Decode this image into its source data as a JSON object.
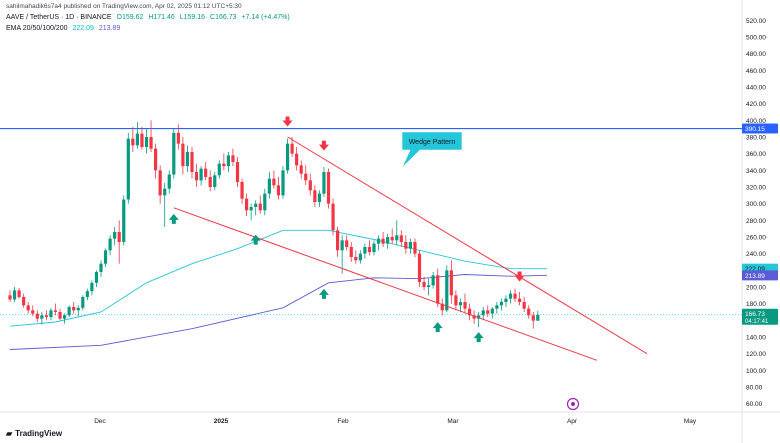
{
  "header": {
    "published": "sahilmahadik6s7a4 published on TradingView.com, Apr 02, 2025 01:12 UTC+5:30",
    "symbol": "AAVE / TetherUS · 1D · BINANCE",
    "ohlc": {
      "open": "O159.62",
      "high": "H171.46",
      "low": "L159.16",
      "close": "C166.73",
      "change": "+7.14 (+4.47%)"
    },
    "ema_label": "EMA 20/50/100/200",
    "ema_values": [
      "222.09",
      "213.89"
    ]
  },
  "branding": {
    "logo_text": "TradingView"
  },
  "colors": {
    "up": "#089981",
    "down": "#f23645",
    "resistance": "#2962ff",
    "wedge": "#f23645",
    "ema_fast": "#26c6da",
    "ema_slow": "#5b5bd6",
    "arrow_up": "#089981",
    "arrow_down": "#f23645"
  },
  "chart_data": {
    "type": "candlestick",
    "y_ticks": [
      60,
      80,
      100,
      120,
      140,
      160,
      180,
      200,
      220,
      240,
      260,
      280,
      300,
      320,
      340,
      360,
      380,
      400,
      420,
      440,
      460,
      480,
      500,
      520
    ],
    "ylim": [
      50,
      530
    ],
    "x_ticks": [
      "Dec",
      "2025",
      "Feb",
      "Mar",
      "Apr",
      "May"
    ],
    "price_labels": {
      "resistance": "390.15",
      "ema_fast": "222.09",
      "ema_slow": "213.89",
      "last": "166.73",
      "countdown": "04:17:41"
    },
    "resistance_level": 390.15,
    "annotation": "Wedge Pattern",
    "candles": [
      {
        "o": 190,
        "h": 196,
        "l": 182,
        "c": 185
      },
      {
        "o": 185,
        "h": 200,
        "l": 182,
        "c": 196
      },
      {
        "o": 196,
        "h": 199,
        "l": 186,
        "c": 188
      },
      {
        "o": 188,
        "h": 192,
        "l": 175,
        "c": 178
      },
      {
        "o": 178,
        "h": 182,
        "l": 168,
        "c": 172
      },
      {
        "o": 172,
        "h": 178,
        "l": 165,
        "c": 168
      },
      {
        "o": 168,
        "h": 172,
        "l": 158,
        "c": 162
      },
      {
        "o": 162,
        "h": 170,
        "l": 155,
        "c": 166
      },
      {
        "o": 166,
        "h": 172,
        "l": 160,
        "c": 164
      },
      {
        "o": 164,
        "h": 175,
        "l": 160,
        "c": 172
      },
      {
        "o": 172,
        "h": 180,
        "l": 166,
        "c": 170
      },
      {
        "o": 170,
        "h": 174,
        "l": 160,
        "c": 162
      },
      {
        "o": 162,
        "h": 168,
        "l": 156,
        "c": 166
      },
      {
        "o": 166,
        "h": 178,
        "l": 164,
        "c": 176
      },
      {
        "o": 176,
        "h": 182,
        "l": 168,
        "c": 172
      },
      {
        "o": 172,
        "h": 178,
        "l": 165,
        "c": 175
      },
      {
        "o": 175,
        "h": 190,
        "l": 172,
        "c": 188
      },
      {
        "o": 188,
        "h": 198,
        "l": 184,
        "c": 195
      },
      {
        "o": 195,
        "h": 208,
        "l": 190,
        "c": 205
      },
      {
        "o": 205,
        "h": 220,
        "l": 200,
        "c": 218
      },
      {
        "o": 218,
        "h": 232,
        "l": 212,
        "c": 228
      },
      {
        "o": 228,
        "h": 246,
        "l": 224,
        "c": 244
      },
      {
        "o": 244,
        "h": 262,
        "l": 238,
        "c": 258
      },
      {
        "o": 258,
        "h": 272,
        "l": 250,
        "c": 266
      },
      {
        "o": 266,
        "h": 280,
        "l": 228,
        "c": 254
      },
      {
        "o": 254,
        "h": 310,
        "l": 250,
        "c": 305
      },
      {
        "o": 305,
        "h": 385,
        "l": 300,
        "c": 378
      },
      {
        "o": 378,
        "h": 392,
        "l": 362,
        "c": 370
      },
      {
        "o": 370,
        "h": 398,
        "l": 366,
        "c": 384
      },
      {
        "o": 384,
        "h": 392,
        "l": 365,
        "c": 368
      },
      {
        "o": 368,
        "h": 390,
        "l": 360,
        "c": 380
      },
      {
        "o": 380,
        "h": 400,
        "l": 362,
        "c": 366
      },
      {
        "o": 366,
        "h": 372,
        "l": 330,
        "c": 340
      },
      {
        "o": 340,
        "h": 346,
        "l": 300,
        "c": 310
      },
      {
        "o": 310,
        "h": 325,
        "l": 272,
        "c": 318
      },
      {
        "o": 318,
        "h": 340,
        "l": 312,
        "c": 335
      },
      {
        "o": 335,
        "h": 390,
        "l": 330,
        "c": 385
      },
      {
        "o": 385,
        "h": 395,
        "l": 365,
        "c": 372
      },
      {
        "o": 372,
        "h": 380,
        "l": 335,
        "c": 345
      },
      {
        "o": 345,
        "h": 370,
        "l": 338,
        "c": 362
      },
      {
        "o": 362,
        "h": 368,
        "l": 330,
        "c": 338
      },
      {
        "o": 338,
        "h": 348,
        "l": 320,
        "c": 328
      },
      {
        "o": 328,
        "h": 345,
        "l": 322,
        "c": 342
      },
      {
        "o": 342,
        "h": 350,
        "l": 328,
        "c": 332
      },
      {
        "o": 332,
        "h": 340,
        "l": 315,
        "c": 320
      },
      {
        "o": 320,
        "h": 338,
        "l": 316,
        "c": 334
      },
      {
        "o": 334,
        "h": 352,
        "l": 330,
        "c": 348
      },
      {
        "o": 348,
        "h": 360,
        "l": 340,
        "c": 345
      },
      {
        "o": 345,
        "h": 362,
        "l": 338,
        "c": 358
      },
      {
        "o": 358,
        "h": 366,
        "l": 345,
        "c": 350
      },
      {
        "o": 350,
        "h": 356,
        "l": 320,
        "c": 326
      },
      {
        "o": 326,
        "h": 330,
        "l": 300,
        "c": 306
      },
      {
        "o": 306,
        "h": 312,
        "l": 285,
        "c": 292
      },
      {
        "o": 292,
        "h": 300,
        "l": 280,
        "c": 296
      },
      {
        "o": 296,
        "h": 304,
        "l": 286,
        "c": 300
      },
      {
        "o": 300,
        "h": 310,
        "l": 288,
        "c": 292
      },
      {
        "o": 292,
        "h": 318,
        "l": 286,
        "c": 312
      },
      {
        "o": 312,
        "h": 338,
        "l": 306,
        "c": 330
      },
      {
        "o": 330,
        "h": 340,
        "l": 318,
        "c": 322
      },
      {
        "o": 322,
        "h": 332,
        "l": 305,
        "c": 310
      },
      {
        "o": 310,
        "h": 345,
        "l": 306,
        "c": 340
      },
      {
        "o": 340,
        "h": 378,
        "l": 336,
        "c": 372
      },
      {
        "o": 372,
        "h": 380,
        "l": 356,
        "c": 360
      },
      {
        "o": 360,
        "h": 368,
        "l": 340,
        "c": 346
      },
      {
        "o": 346,
        "h": 352,
        "l": 330,
        "c": 336
      },
      {
        "o": 336,
        "h": 346,
        "l": 322,
        "c": 328
      },
      {
        "o": 328,
        "h": 336,
        "l": 310,
        "c": 316
      },
      {
        "o": 316,
        "h": 322,
        "l": 296,
        "c": 302
      },
      {
        "o": 302,
        "h": 316,
        "l": 296,
        "c": 312
      },
      {
        "o": 312,
        "h": 344,
        "l": 308,
        "c": 338
      },
      {
        "o": 338,
        "h": 342,
        "l": 294,
        "c": 300
      },
      {
        "o": 300,
        "h": 306,
        "l": 262,
        "c": 268
      },
      {
        "o": 268,
        "h": 272,
        "l": 236,
        "c": 244
      },
      {
        "o": 244,
        "h": 262,
        "l": 216,
        "c": 256
      },
      {
        "o": 256,
        "h": 262,
        "l": 244,
        "c": 248
      },
      {
        "o": 248,
        "h": 254,
        "l": 230,
        "c": 236
      },
      {
        "o": 236,
        "h": 244,
        "l": 228,
        "c": 232
      },
      {
        "o": 232,
        "h": 244,
        "l": 228,
        "c": 240
      },
      {
        "o": 240,
        "h": 252,
        "l": 234,
        "c": 248
      },
      {
        "o": 248,
        "h": 256,
        "l": 238,
        "c": 242
      },
      {
        "o": 242,
        "h": 256,
        "l": 238,
        "c": 252
      },
      {
        "o": 252,
        "h": 262,
        "l": 244,
        "c": 258
      },
      {
        "o": 258,
        "h": 266,
        "l": 248,
        "c": 252
      },
      {
        "o": 252,
        "h": 264,
        "l": 246,
        "c": 260
      },
      {
        "o": 260,
        "h": 270,
        "l": 252,
        "c": 256
      },
      {
        "o": 256,
        "h": 280,
        "l": 250,
        "c": 262
      },
      {
        "o": 262,
        "h": 268,
        "l": 248,
        "c": 254
      },
      {
        "o": 254,
        "h": 262,
        "l": 240,
        "c": 246
      },
      {
        "o": 246,
        "h": 258,
        "l": 240,
        "c": 254
      },
      {
        "o": 254,
        "h": 258,
        "l": 236,
        "c": 240
      },
      {
        "o": 240,
        "h": 244,
        "l": 200,
        "c": 206
      },
      {
        "o": 206,
        "h": 212,
        "l": 196,
        "c": 200
      },
      {
        "o": 200,
        "h": 210,
        "l": 190,
        "c": 202
      },
      {
        "o": 202,
        "h": 218,
        "l": 198,
        "c": 214
      },
      {
        "o": 214,
        "h": 222,
        "l": 176,
        "c": 180
      },
      {
        "o": 180,
        "h": 186,
        "l": 166,
        "c": 172
      },
      {
        "o": 172,
        "h": 226,
        "l": 170,
        "c": 220
      },
      {
        "o": 220,
        "h": 232,
        "l": 180,
        "c": 190
      },
      {
        "o": 190,
        "h": 196,
        "l": 172,
        "c": 178
      },
      {
        "o": 178,
        "h": 186,
        "l": 170,
        "c": 182
      },
      {
        "o": 182,
        "h": 192,
        "l": 170,
        "c": 174
      },
      {
        "o": 174,
        "h": 180,
        "l": 160,
        "c": 166
      },
      {
        "o": 166,
        "h": 172,
        "l": 156,
        "c": 162
      },
      {
        "o": 162,
        "h": 170,
        "l": 152,
        "c": 166
      },
      {
        "o": 166,
        "h": 176,
        "l": 160,
        "c": 172
      },
      {
        "o": 172,
        "h": 178,
        "l": 164,
        "c": 168
      },
      {
        "o": 168,
        "h": 176,
        "l": 162,
        "c": 174
      },
      {
        "o": 174,
        "h": 182,
        "l": 168,
        "c": 178
      },
      {
        "o": 178,
        "h": 186,
        "l": 172,
        "c": 182
      },
      {
        "o": 182,
        "h": 190,
        "l": 176,
        "c": 186
      },
      {
        "o": 186,
        "h": 196,
        "l": 180,
        "c": 192
      },
      {
        "o": 192,
        "h": 198,
        "l": 182,
        "c": 186
      },
      {
        "o": 186,
        "h": 194,
        "l": 178,
        "c": 182
      },
      {
        "o": 182,
        "h": 188,
        "l": 170,
        "c": 174
      },
      {
        "o": 174,
        "h": 178,
        "l": 162,
        "c": 166
      },
      {
        "o": 166,
        "h": 170,
        "l": 150,
        "c": 159.6
      },
      {
        "o": 159.6,
        "h": 171.5,
        "l": 159.2,
        "c": 166.7
      }
    ],
    "ema_fast": [
      [
        0,
        153
      ],
      [
        10,
        158
      ],
      [
        20,
        170
      ],
      [
        30,
        205
      ],
      [
        40,
        228
      ],
      [
        50,
        246
      ],
      [
        60,
        268
      ],
      [
        70,
        268
      ],
      [
        80,
        257
      ],
      [
        90,
        244
      ],
      [
        100,
        231
      ],
      [
        110,
        222
      ],
      [
        118,
        222
      ]
    ],
    "ema_slow": [
      [
        0,
        125
      ],
      [
        20,
        130
      ],
      [
        40,
        150
      ],
      [
        60,
        175
      ],
      [
        70,
        205
      ],
      [
        80,
        211
      ],
      [
        90,
        210
      ],
      [
        100,
        215
      ],
      [
        110,
        213
      ],
      [
        118,
        214
      ]
    ],
    "wedge_upper": [
      [
        61,
        380
      ],
      [
        140,
        120
      ]
    ],
    "wedge_lower": [
      [
        36,
        295
      ],
      [
        129,
        112
      ]
    ],
    "signals": [
      {
        "type": "up",
        "x": 36,
        "y": 295
      },
      {
        "type": "up",
        "x": 54,
        "y": 270
      },
      {
        "type": "up",
        "x": 69,
        "y": 205
      },
      {
        "type": "up",
        "x": 94,
        "y": 165
      },
      {
        "type": "up",
        "x": 103,
        "y": 153
      },
      {
        "type": "down",
        "x": 61,
        "y": 389
      },
      {
        "type": "down",
        "x": 69,
        "y": 360
      },
      {
        "type": "down",
        "x": 112,
        "y": 203
      }
    ]
  }
}
